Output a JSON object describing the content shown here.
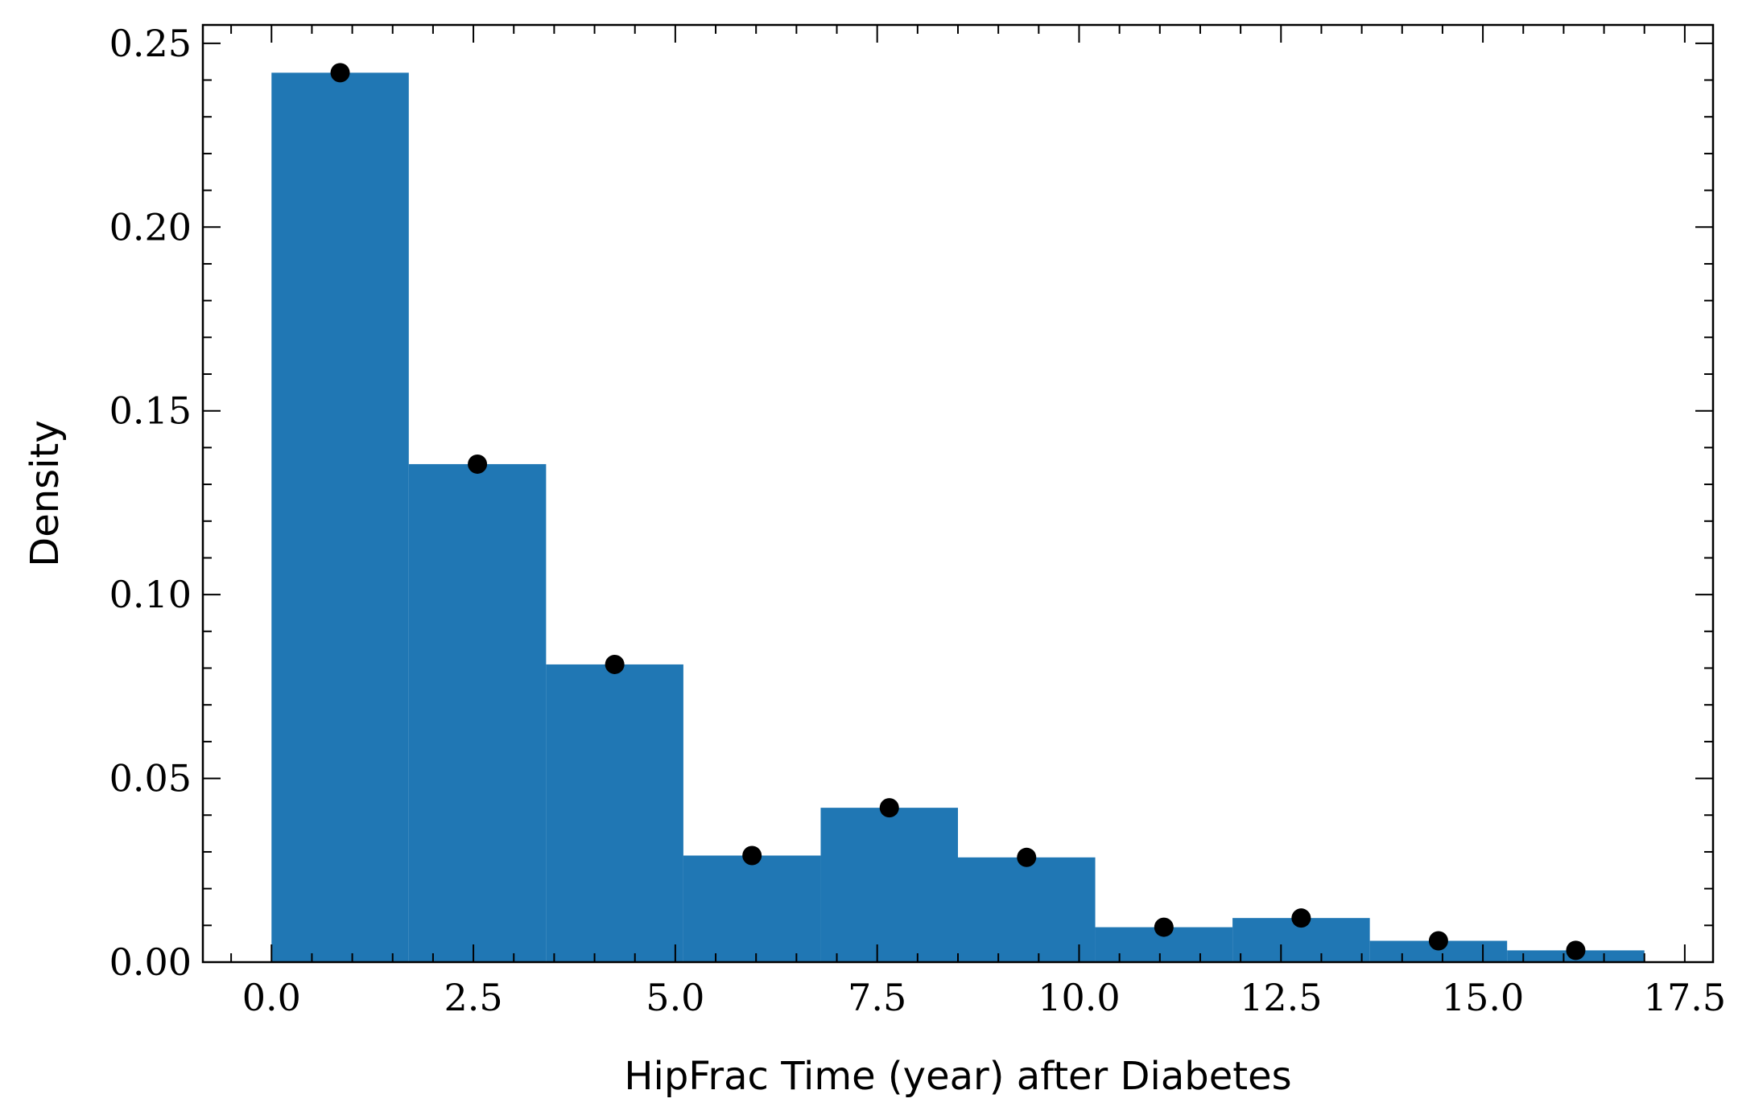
{
  "chart_data": {
    "type": "bar",
    "subtype": "histogram",
    "xlabel": "HipFrac Time (year) after Diabetes",
    "ylabel": "Density",
    "xlim": [
      -0.85,
      17.85
    ],
    "ylim": [
      0,
      0.255
    ],
    "grid": false,
    "legend": "none",
    "colors": {
      "bars": "#2077b4",
      "points": "#000000"
    },
    "bins": [
      {
        "x0": 0.0,
        "x1": 1.7,
        "density": 0.242
      },
      {
        "x0": 1.7,
        "x1": 3.4,
        "density": 0.1355
      },
      {
        "x0": 3.4,
        "x1": 5.1,
        "density": 0.081
      },
      {
        "x0": 5.1,
        "x1": 6.8,
        "density": 0.029
      },
      {
        "x0": 6.8,
        "x1": 8.5,
        "density": 0.042
      },
      {
        "x0": 8.5,
        "x1": 10.2,
        "density": 0.0285
      },
      {
        "x0": 10.2,
        "x1": 11.9,
        "density": 0.0095
      },
      {
        "x0": 11.9,
        "x1": 13.6,
        "density": 0.012
      },
      {
        "x0": 13.6,
        "x1": 15.3,
        "density": 0.0058
      },
      {
        "x0": 15.3,
        "x1": 17.0,
        "density": 0.0032
      }
    ],
    "points": [
      {
        "x": 0.85,
        "y": 0.242
      },
      {
        "x": 2.55,
        "y": 0.1355
      },
      {
        "x": 4.25,
        "y": 0.081
      },
      {
        "x": 5.95,
        "y": 0.029
      },
      {
        "x": 7.65,
        "y": 0.042
      },
      {
        "x": 9.35,
        "y": 0.0285
      },
      {
        "x": 11.05,
        "y": 0.0095
      },
      {
        "x": 12.75,
        "y": 0.012
      },
      {
        "x": 14.45,
        "y": 0.0058
      },
      {
        "x": 16.15,
        "y": 0.0032
      }
    ],
    "xticks": [
      {
        "value": 0.0,
        "label": "0.0"
      },
      {
        "value": 2.5,
        "label": "2.5"
      },
      {
        "value": 5.0,
        "label": "5.0"
      },
      {
        "value": 7.5,
        "label": "7.5"
      },
      {
        "value": 10.0,
        "label": "10.0"
      },
      {
        "value": 12.5,
        "label": "12.5"
      },
      {
        "value": 15.0,
        "label": "15.0"
      },
      {
        "value": 17.5,
        "label": "17.5"
      }
    ],
    "yticks": [
      {
        "value": 0.0,
        "label": "0.00"
      },
      {
        "value": 0.05,
        "label": "0.05"
      },
      {
        "value": 0.1,
        "label": "0.10"
      },
      {
        "value": 0.15,
        "label": "0.15"
      },
      {
        "value": 0.2,
        "label": "0.20"
      },
      {
        "value": 0.25,
        "label": "0.25"
      }
    ],
    "x_minor_step": 0.5,
    "y_minor_step": 0.01
  }
}
